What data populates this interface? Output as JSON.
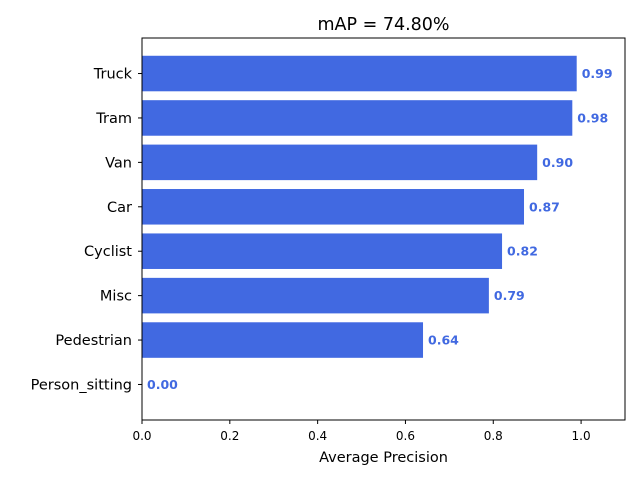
{
  "chart_data": {
    "type": "bar",
    "orientation": "horizontal",
    "title": "mAP = 74.80%",
    "xlabel": "Average Precision",
    "ylabel": "",
    "categories": [
      "Truck",
      "Tram",
      "Van",
      "Car",
      "Cyclist",
      "Misc",
      "Pedestrian",
      "Person_sitting"
    ],
    "values": [
      0.99,
      0.98,
      0.9,
      0.87,
      0.82,
      0.79,
      0.64,
      0.0
    ],
    "value_labels": [
      "0.99",
      "0.98",
      "0.90",
      "0.87",
      "0.82",
      "0.79",
      "0.64",
      "0.00"
    ],
    "xlim": [
      0,
      1.1
    ],
    "x_ticks": [
      0.0,
      0.2,
      0.4,
      0.6,
      0.8,
      1.0
    ],
    "x_tick_labels": [
      "0.0",
      "0.2",
      "0.4",
      "0.6",
      "0.8",
      "1.0"
    ],
    "bar_color": "#4169e1",
    "label_color": "#4169e1",
    "grid": false,
    "legend": false
  }
}
